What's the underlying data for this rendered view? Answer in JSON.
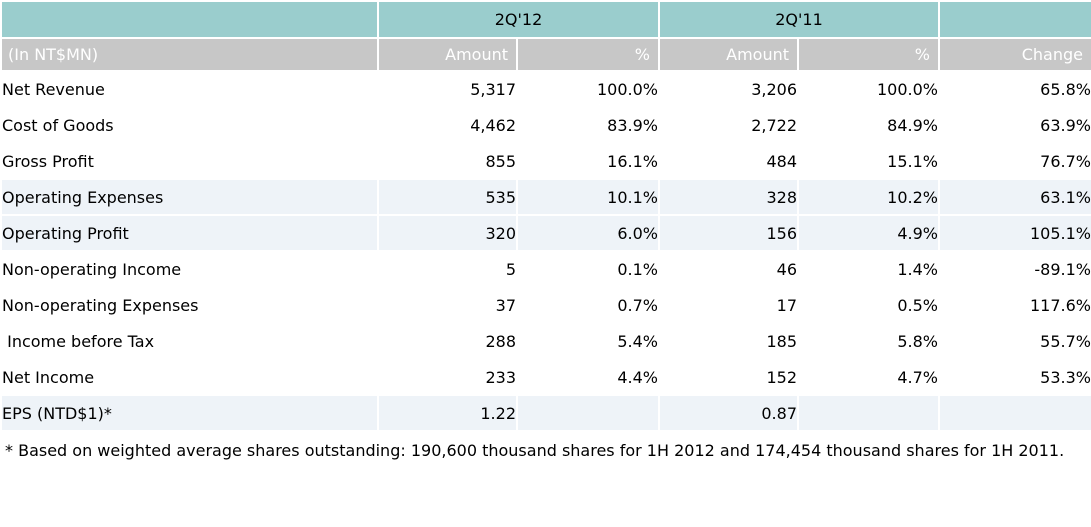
{
  "colors": {
    "period_header_bg": "#9ACDCD",
    "column_header_bg": "#C7C7C7",
    "column_header_text": "#ffffff",
    "highlight_row_bg": "#EEF3F8",
    "body_text": "#000000"
  },
  "table": {
    "period_headers": {
      "q12": "2Q'12",
      "q11": "2Q'11"
    },
    "column_headers": {
      "unit_label": "(In NT$MN)",
      "amount_q12": "Amount",
      "pct_q12": "%",
      "amount_q11": "Amount",
      "pct_q11": "%",
      "change": "Change"
    },
    "rows": [
      {
        "label": "Net Revenue",
        "amount_q12": "5,317",
        "pct_q12": "100.0%",
        "amount_q11": "3,206",
        "pct_q11": "100.0%",
        "change": "65.8%",
        "highlighted": false
      },
      {
        "label": "Cost of Goods",
        "amount_q12": "4,462",
        "pct_q12": "83.9%",
        "amount_q11": "2,722",
        "pct_q11": "84.9%",
        "change": "63.9%",
        "highlighted": false
      },
      {
        "label": "Gross Profit",
        "amount_q12": "855",
        "pct_q12": "16.1%",
        "amount_q11": "484",
        "pct_q11": "15.1%",
        "change": "76.7%",
        "highlighted": false
      },
      {
        "label": "Operating Expenses",
        "amount_q12": "535",
        "pct_q12": "10.1%",
        "amount_q11": "328",
        "pct_q11": "10.2%",
        "change": "63.1%",
        "highlighted": true
      },
      {
        "label": "Operating Profit",
        "amount_q12": "320",
        "pct_q12": "6.0%",
        "amount_q11": "156",
        "pct_q11": "4.9%",
        "change": "105.1%",
        "highlighted": true
      },
      {
        "label": "Non-operating Income",
        "amount_q12": "5",
        "pct_q12": "0.1%",
        "amount_q11": "46",
        "pct_q11": "1.4%",
        "change": "-89.1%",
        "highlighted": false
      },
      {
        "label": "Non-operating Expenses",
        "amount_q12": "37",
        "pct_q12": "0.7%",
        "amount_q11": "17",
        "pct_q11": "0.5%",
        "change": "117.6%",
        "highlighted": false
      },
      {
        "label": " Income before Tax",
        "amount_q12": "288",
        "pct_q12": "5.4%",
        "amount_q11": "185",
        "pct_q11": "5.8%",
        "change": "55.7%",
        "highlighted": false
      },
      {
        "label": "Net Income",
        "amount_q12": "233",
        "pct_q12": "4.4%",
        "amount_q11": "152",
        "pct_q11": "4.7%",
        "change": "53.3%",
        "highlighted": false
      },
      {
        "label": "EPS (NTD$1)*",
        "amount_q12": "1.22",
        "pct_q12": "",
        "amount_q11": "0.87",
        "pct_q11": "",
        "change": "",
        "highlighted": true
      }
    ]
  },
  "footnote": "* Based on weighted average shares outstanding: 190,600 thousand shares for 1H 2012 and 174,454 thousand shares for 1H 2011."
}
